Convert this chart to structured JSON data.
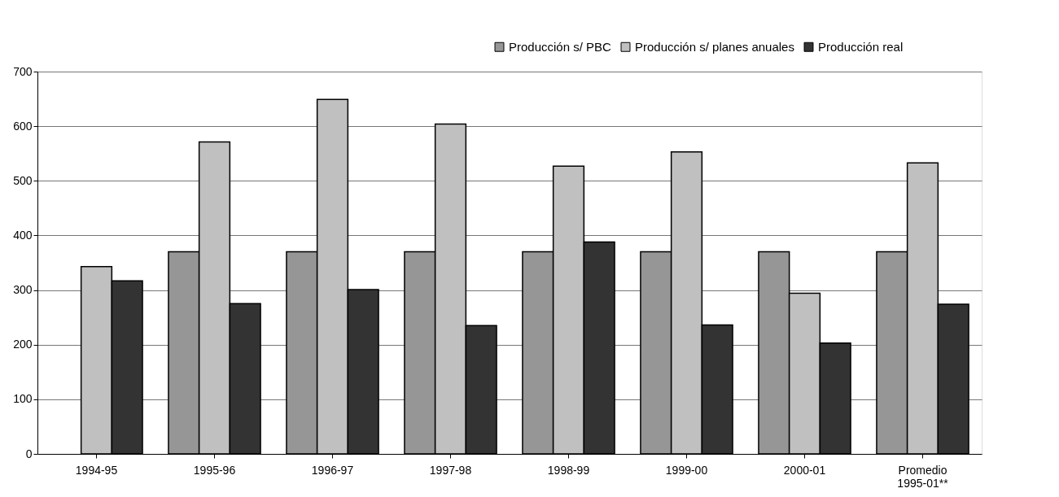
{
  "chart_data": {
    "type": "bar",
    "categories": [
      "1994-95",
      "1995-96",
      "1996-97",
      "1997-98",
      "1998-99",
      "1999-00",
      "2000-01",
      "Promedio\n1995-01**"
    ],
    "series": [
      {
        "name": "Producción s/ PBC",
        "color": "#969696",
        "values": [
          null,
          370,
          370,
          370,
          370,
          370,
          370,
          370
        ]
      },
      {
        "name": "Producción s/ planes anuales",
        "color": "#c0c0c0",
        "values": [
          343,
          571,
          649,
          604,
          527,
          553,
          294,
          533
        ]
      },
      {
        "name": "Producción real",
        "color": "#333333",
        "values": [
          317,
          275,
          301,
          235,
          388,
          236,
          203,
          274
        ]
      }
    ],
    "ylim": [
      0,
      700
    ],
    "yticks": [
      0,
      100,
      200,
      300,
      400,
      500,
      600,
      700
    ],
    "grid": "y",
    "legend": "top right"
  }
}
